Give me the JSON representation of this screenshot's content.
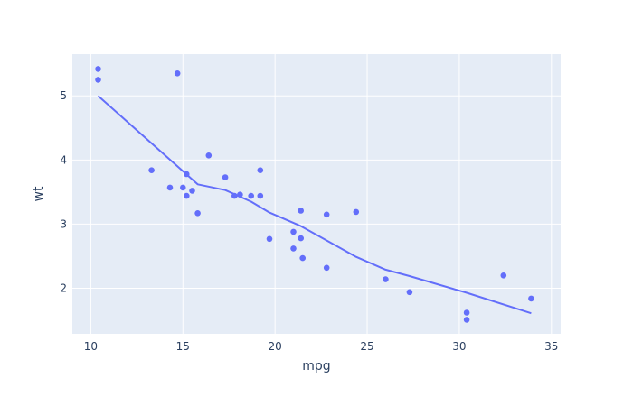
{
  "chart_data": {
    "type": "scatter",
    "title": "",
    "xlabel": "mpg",
    "ylabel": "wt",
    "xlim": [
      9.0,
      35.5
    ],
    "ylim": [
      1.29,
      5.65
    ],
    "xticks": [
      10,
      15,
      20,
      25,
      30,
      35
    ],
    "yticks": [
      2,
      3,
      4,
      5
    ],
    "grid": true,
    "legend": "none",
    "colors": {
      "background": "#e5ecf6",
      "grid": "#ffffff",
      "marker": "#636efa",
      "line": "#636efa",
      "text": "#2a3f5f"
    },
    "series": [
      {
        "type": "markers",
        "points": [
          [
            10.4,
            5.42
          ],
          [
            10.4,
            5.25
          ],
          [
            14.7,
            5.35
          ],
          [
            13.3,
            3.84
          ],
          [
            14.3,
            3.57
          ],
          [
            15.0,
            3.57
          ],
          [
            15.2,
            3.78
          ],
          [
            15.2,
            3.44
          ],
          [
            15.5,
            3.52
          ],
          [
            15.8,
            3.17
          ],
          [
            16.4,
            4.07
          ],
          [
            17.3,
            3.73
          ],
          [
            17.8,
            3.44
          ],
          [
            18.1,
            3.46
          ],
          [
            18.7,
            3.44
          ],
          [
            19.2,
            3.84
          ],
          [
            19.2,
            3.44
          ],
          [
            19.7,
            2.77
          ],
          [
            21.0,
            2.88
          ],
          [
            21.0,
            2.62
          ],
          [
            21.4,
            3.21
          ],
          [
            21.4,
            2.78
          ],
          [
            21.5,
            2.47
          ],
          [
            22.8,
            3.15
          ],
          [
            22.8,
            2.32
          ],
          [
            24.4,
            3.19
          ],
          [
            26.0,
            2.14
          ],
          [
            27.3,
            1.94
          ],
          [
            30.4,
            1.62
          ],
          [
            30.4,
            1.51
          ],
          [
            32.4,
            2.2
          ],
          [
            33.9,
            1.84
          ]
        ]
      },
      {
        "type": "lines",
        "points": [
          [
            10.4,
            5.0
          ],
          [
            15.8,
            3.62
          ],
          [
            17.3,
            3.53
          ],
          [
            18.7,
            3.35
          ],
          [
            19.7,
            3.18
          ],
          [
            21.4,
            2.97
          ],
          [
            24.4,
            2.49
          ],
          [
            26.0,
            2.29
          ],
          [
            27.3,
            2.19
          ],
          [
            30.4,
            1.93
          ],
          [
            33.9,
            1.61
          ]
        ]
      }
    ]
  }
}
